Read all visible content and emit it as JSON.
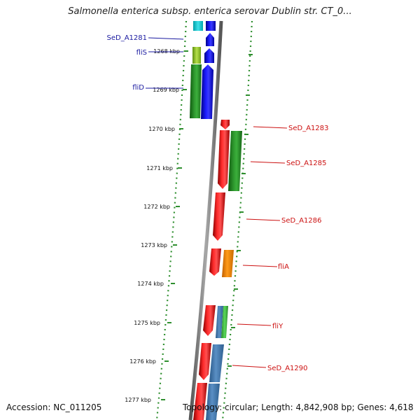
{
  "title": "Salmonella enterica subsp. enterica serovar Dublin str. CT_0...",
  "footer": {
    "accession": "Accession: NC_011205",
    "summary": "Topology: circular; Length: 4,842,908 bp; Genes: 4,618"
  },
  "colors": {
    "backbone": "#7f7f7f",
    "dots": "#2f8f2f",
    "left_label": "#1a1aa0",
    "right_label": "#cc1111"
  },
  "ticks": [
    "1268 kbp",
    "1269 kbp",
    "1270 kbp",
    "1271 kbp",
    "1272 kbp",
    "1273 kbp",
    "1274 kbp",
    "1275 kbp",
    "1276 kbp",
    "1277 kbp"
  ],
  "genes_left": [
    {
      "name": "SeD_A1281"
    },
    {
      "name": "fliS"
    },
    {
      "name": "fliD"
    }
  ],
  "genes_right": [
    {
      "name": "SeD_A1283"
    },
    {
      "name": "SeD_A1285"
    },
    {
      "name": "SeD_A1286"
    },
    {
      "name": "fliA"
    },
    {
      "name": "fliY"
    },
    {
      "name": "SeD_A1290"
    }
  ]
}
